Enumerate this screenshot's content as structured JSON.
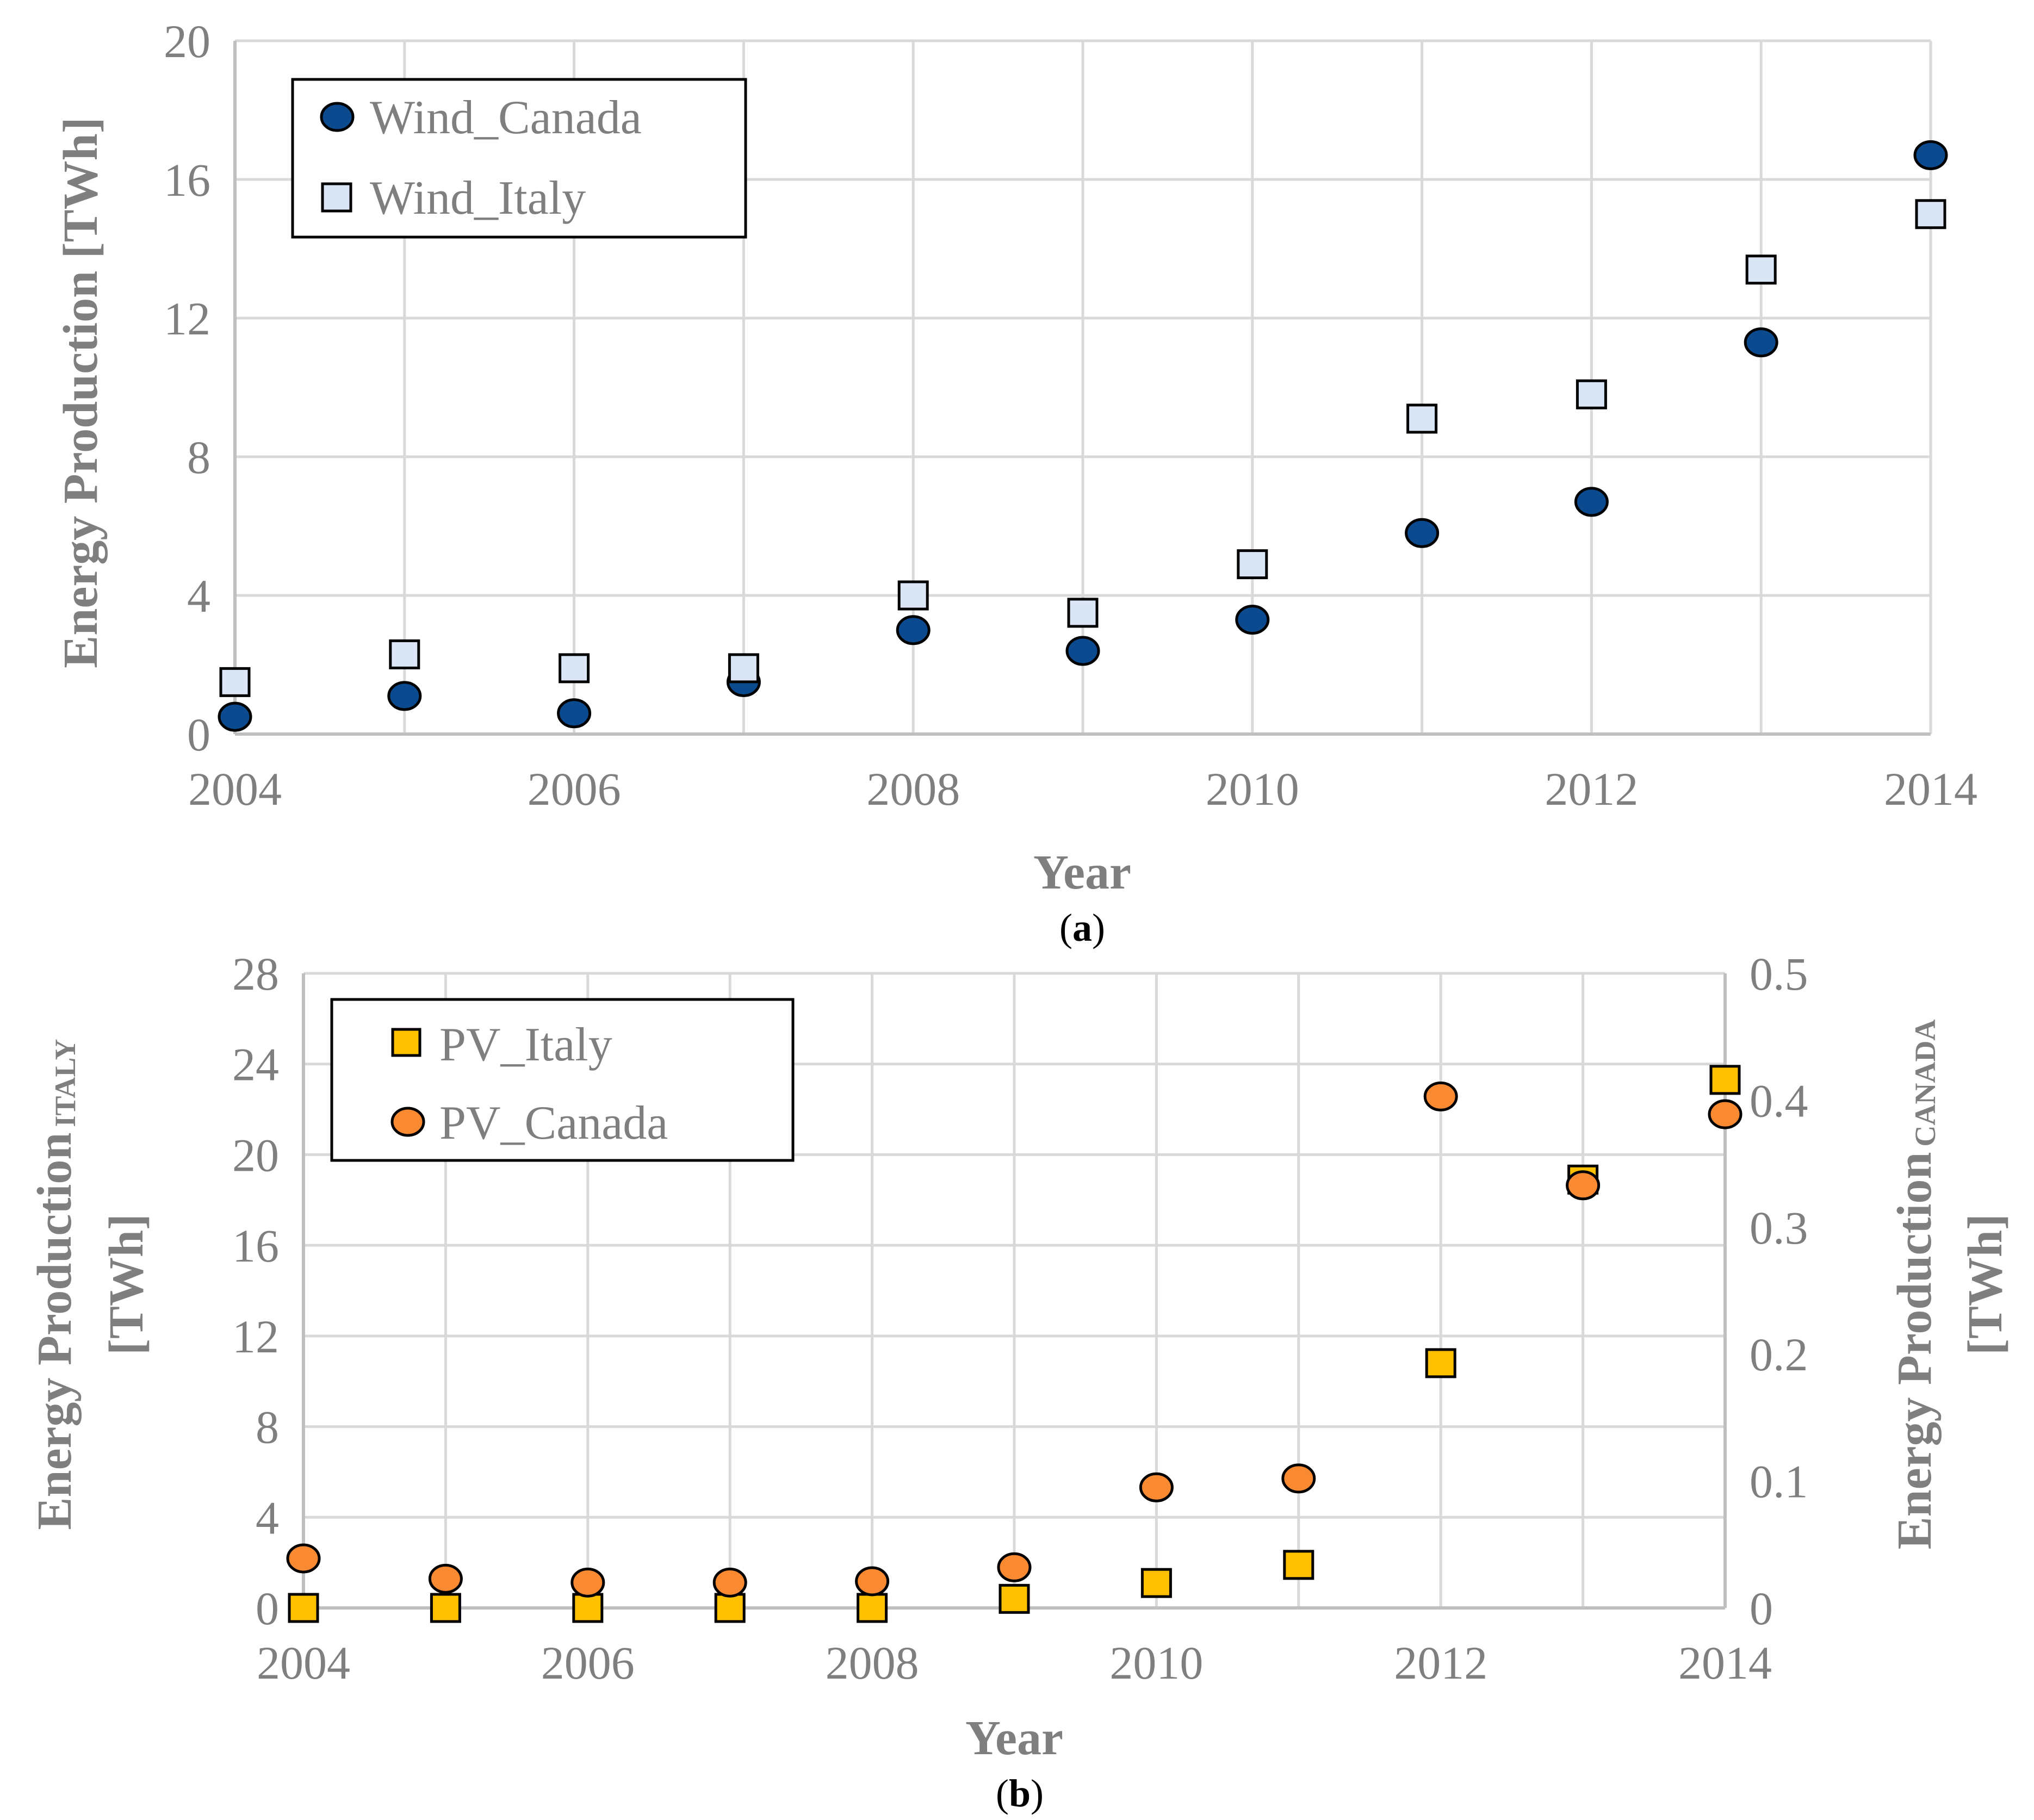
{
  "chart_data": [
    {
      "id": "a",
      "type": "scatter",
      "caption": {
        "open": "(",
        "letter": "a",
        "close": ")"
      },
      "xlabel": "Year",
      "ylabel": "Energy Production [TWh]",
      "xlim": [
        2004,
        2014
      ],
      "ylim": [
        0,
        20
      ],
      "xticks": [
        2004,
        2006,
        2008,
        2010,
        2012,
        2014
      ],
      "yticks": [
        0,
        4,
        8,
        12,
        16,
        20
      ],
      "grid": true,
      "legend_position": "top-left",
      "x": [
        2004,
        2005,
        2006,
        2007,
        2008,
        2009,
        2010,
        2011,
        2012,
        2013,
        2014
      ],
      "series": [
        {
          "name": "Wind_Canada",
          "marker": "circle",
          "color": "#0b4a8f",
          "axis": "left",
          "values": [
            0.5,
            1.1,
            0.6,
            1.5,
            3.0,
            2.4,
            3.3,
            5.8,
            6.7,
            11.3,
            16.7
          ]
        },
        {
          "name": "Wind_Italy",
          "marker": "square",
          "color": "#dae6f5",
          "axis": "left",
          "values": [
            1.5,
            2.3,
            1.9,
            1.9,
            4.0,
            3.5,
            4.9,
            9.1,
            9.8,
            13.4,
            15.0
          ]
        }
      ]
    },
    {
      "id": "b",
      "type": "scatter",
      "caption": {
        "open": "(",
        "letter": "b",
        "close": ")"
      },
      "xlabel": "Year",
      "ylabel_left": {
        "main": "Energy Production",
        "sub": "ITALY",
        "unit": "[TWh]"
      },
      "ylabel_right": {
        "main": "Energy Production",
        "sub": "CANADA",
        "unit": "[TWh]"
      },
      "xlim": [
        2004,
        2014
      ],
      "ylim_left": [
        0,
        28
      ],
      "ylim_right": [
        0,
        0.5
      ],
      "xticks": [
        2004,
        2006,
        2008,
        2010,
        2012,
        2014
      ],
      "yticks_left": [
        0,
        4,
        8,
        12,
        16,
        20,
        24,
        28
      ],
      "yticks_right": [
        0,
        0.1,
        0.2,
        0.3,
        0.4,
        0.5
      ],
      "grid": true,
      "legend_position": "top-left",
      "x": [
        2004,
        2005,
        2006,
        2007,
        2008,
        2009,
        2010,
        2011,
        2012,
        2013,
        2014
      ],
      "series": [
        {
          "name": "PV_Italy",
          "marker": "square",
          "color": "#ffc000",
          "axis": "left",
          "values": [
            0.0,
            0.0,
            0.0,
            0.0,
            0.0,
            0.4,
            1.1,
            1.9,
            10.8,
            18.9,
            23.3
          ]
        },
        {
          "name": "PV_Canada",
          "marker": "circle",
          "color": "#fa8a32",
          "axis": "right",
          "values": [
            0.039,
            0.023,
            0.02,
            0.02,
            0.021,
            0.032,
            0.095,
            0.102,
            0.403,
            0.333,
            0.389
          ]
        }
      ]
    }
  ]
}
